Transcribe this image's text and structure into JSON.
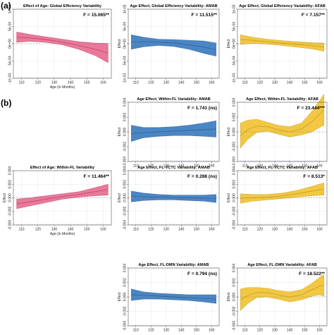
{
  "panel_labels": [
    "(a)",
    "(b)"
  ],
  "chart_data": [
    {
      "id": "a1",
      "type": "line",
      "title": "Effect of Age: Global Efficiency Variability",
      "annotation": "F = 15.065**",
      "xlabel": "Age (in Months)",
      "ylabel": "",
      "xlim": [
        105,
        165
      ],
      "ylim": [
        -0.001,
        0.001
      ],
      "xticks": [
        110,
        120,
        130,
        140,
        150,
        160
      ],
      "yticks": [
        -0.001,
        -0.0005,
        0,
        0.0005,
        0.001
      ],
      "ytick_labels": [
        "-1e-03",
        "-5e-04",
        "0e+00",
        "5e-04",
        "1e-03"
      ],
      "band_color": "#e8799a",
      "line_color": "#c23a5c",
      "x": [
        107,
        115,
        125,
        135,
        145,
        155,
        163
      ],
      "fit": [
        0.00019,
        0.00017,
        0.00012,
        5e-05,
        -5e-05,
        -0.00016,
        -0.00027
      ],
      "lower": [
        4e-05,
        7e-05,
        4e-05,
        -3e-05,
        -0.00016,
        -0.00034,
        -0.00055
      ],
      "upper": [
        0.00034,
        0.00027,
        0.0002,
        0.00013,
        6e-05,
        2e-05,
        1e-05
      ]
    },
    {
      "id": "a2",
      "type": "line",
      "title": "Age Effect, Global Efficiency Variability: AMAB",
      "annotation": "F = 11.515**",
      "xlabel": "",
      "ylabel": "Effect",
      "xlim": [
        105,
        165
      ],
      "ylim": [
        -0.001,
        0.001
      ],
      "xticks": [
        110,
        120,
        130,
        140,
        150,
        160
      ],
      "yticks": [
        -0.001,
        -0.0005,
        0,
        0.0005,
        0.001
      ],
      "ytick_labels": [
        "-1e-03",
        "-5e-04",
        "0e+00",
        "5e-04",
        "1e-03"
      ],
      "band_color": "#4a86c5",
      "line_color": "#2a5d94",
      "x": [
        107,
        115,
        125,
        135,
        145,
        155,
        163
      ],
      "fit": [
        5e-05,
        5e-05,
        4e-05,
        2e-05,
        -3e-05,
        -0.0001,
        -0.00017
      ],
      "lower": [
        -0.00016,
        -9e-05,
        -5e-05,
        -8e-05,
        -0.00016,
        -0.00028,
        -0.00036
      ],
      "upper": [
        0.00026,
        0.00019,
        0.00013,
        0.00012,
        0.0001,
        8e-05,
        2e-05
      ]
    },
    {
      "id": "a3",
      "type": "line",
      "title": "Age Effect, Global Efficiency Variability: AFAB",
      "annotation": "F = 7.157**",
      "xlabel": "",
      "ylabel": "Effect",
      "xlim": [
        105,
        165
      ],
      "ylim": [
        -0.001,
        0.001
      ],
      "xticks": [
        110,
        120,
        130,
        140,
        150,
        160
      ],
      "yticks": [
        -0.001,
        -0.0005,
        0,
        0.0005,
        0.001
      ],
      "ytick_labels": [
        "-1e-03",
        "-5e-04",
        "0e+00",
        "5e-04",
        "1e-03"
      ],
      "band_color": "#f2c744",
      "line_color": "#c49a1a",
      "x": [
        107,
        115,
        125,
        135,
        145,
        155,
        163
      ],
      "fit": [
        0.00012,
        0.0001,
        6e-05,
        2e-05,
        -2e-05,
        -6e-05,
        -0.0001
      ],
      "lower": [
        -2e-05,
        1e-05,
        -1e-05,
        -5e-05,
        -0.0001,
        -0.00015,
        -0.00022
      ],
      "upper": [
        0.00026,
        0.00019,
        0.00013,
        9e-05,
        6e-05,
        3e-05,
        2e-05
      ]
    },
    {
      "id": "b2",
      "type": "line",
      "title": "Age Effect, Within-FL Variability: AMAB",
      "annotation": "F = 1.741 (ns)",
      "xlabel": "",
      "ylabel": "Effect",
      "xlim": [
        105,
        165
      ],
      "ylim": [
        -0.004,
        0.004
      ],
      "xticks": [
        110,
        120,
        130,
        140,
        150,
        160
      ],
      "yticks": [
        -0.004,
        -0.002,
        0,
        0.002,
        0.004
      ],
      "ytick_labels": [
        "-0.004",
        "-0.002",
        "0.000",
        "0.002",
        "0.004"
      ],
      "band_color": "#4a86c5",
      "line_color": "#2a5d94",
      "x": [
        107,
        115,
        125,
        135,
        145,
        155,
        163
      ],
      "fit": [
        -0.0002,
        -0.0001,
        0,
        0.0001,
        0.0002,
        0.0003,
        0.0004
      ],
      "lower": [
        -0.0013,
        -0.0008,
        -0.0006,
        -0.0005,
        -0.0005,
        -0.0006,
        -0.0007
      ],
      "upper": [
        0.0009,
        0.0006,
        0.0006,
        0.0007,
        0.0009,
        0.0012,
        0.0015
      ]
    },
    {
      "id": "b3",
      "type": "line",
      "title": "Age Effect, Within-FL Variability: AFAB",
      "annotation": "F = 23.444***",
      "xlabel": "",
      "ylabel": "Effect",
      "xlim": [
        105,
        165
      ],
      "ylim": [
        -0.004,
        0.004
      ],
      "xticks": [
        110,
        120,
        130,
        140,
        150,
        160
      ],
      "yticks": [
        -0.004,
        -0.002,
        0,
        0.002,
        0.004
      ],
      "ytick_labels": [
        "-0.004",
        "-0.002",
        "0.000",
        "0.002",
        "0.004"
      ],
      "band_color": "#f2c744",
      "line_color": "#c49a1a",
      "x": [
        107,
        112,
        118,
        125,
        132,
        140,
        148,
        155,
        160,
        163
      ],
      "fit": [
        -0.0005,
        0.0003,
        0.0008,
        0.0007,
        0.0003,
        0,
        0.0004,
        0.0014,
        0.0024,
        0.003
      ],
      "lower": [
        -0.0022,
        -0.001,
        -0.0001,
        0.0001,
        -0.0003,
        -0.0007,
        -0.0004,
        0,
        0.0006,
        0.0009
      ],
      "upper": [
        0.0012,
        0.0016,
        0.0017,
        0.0013,
        0.0009,
        0.0007,
        0.0012,
        0.0028,
        0.0042,
        0.0051
      ]
    },
    {
      "id": "b4",
      "type": "line",
      "title": "Effect of Age: Within-FL Variability",
      "annotation": "F = 11.464**",
      "xlabel": "Age (in Months)",
      "ylabel": "Effect",
      "xlim": [
        105,
        165
      ],
      "ylim": [
        -0.004,
        0.004
      ],
      "xticks": [
        110,
        120,
        130,
        140,
        150,
        160
      ],
      "yticks": [
        -0.004,
        -0.002,
        0,
        0.002,
        0.004
      ],
      "ytick_labels": [
        "-0.004",
        "-0.002",
        "0.000",
        "0.002",
        "0.004"
      ],
      "band_color": "#e8799a",
      "line_color": "#c23a5c",
      "x": [
        107,
        115,
        125,
        135,
        145,
        155,
        163
      ],
      "fit": [
        -0.0009,
        -0.0006,
        -0.0002,
        0.0002,
        0.0005,
        0.0009,
        0.0012
      ],
      "lower": [
        -0.0016,
        -0.0012,
        -0.0007,
        -0.0002,
        0.0001,
        0.0003,
        0.0004
      ],
      "upper": [
        -0.0002,
        0,
        0.0003,
        0.0006,
        0.0009,
        0.0015,
        0.002
      ]
    },
    {
      "id": "b5",
      "type": "line",
      "title": "Age Effect, FL-VCTC Variability: AMAB",
      "annotation": "F = 0.288 (ns)",
      "xlabel": "",
      "ylabel": "Effect",
      "xlim": [
        105,
        165
      ],
      "ylim": [
        -0.004,
        0.004
      ],
      "xticks": [
        110,
        120,
        130,
        140,
        150,
        160
      ],
      "yticks": [
        -0.004,
        -0.002,
        0,
        0.002,
        0.004
      ],
      "ytick_labels": [
        "-0.004",
        "-0.002",
        "0.000",
        "0.002",
        "0.004"
      ],
      "band_color": "#4a86c5",
      "line_color": "#2a5d94",
      "x": [
        107,
        115,
        125,
        135,
        145,
        155,
        163
      ],
      "fit": [
        0.0002,
        0.00015,
        0.0001,
        5e-05,
        0,
        -5e-05,
        -0.0001
      ],
      "lower": [
        -0.0006,
        -0.0004,
        -0.0003,
        -0.0003,
        -0.0004,
        -0.0005,
        -0.0007
      ],
      "upper": [
        0.001,
        0.0007,
        0.0005,
        0.0004,
        0.0004,
        0.0004,
        0.0005
      ]
    },
    {
      "id": "b6",
      "type": "line",
      "title": "Age Effect, FL-VCTC Variability: AFAB",
      "annotation": "F = 8.513*",
      "xlabel": "",
      "ylabel": "Effect",
      "xlim": [
        105,
        165
      ],
      "ylim": [
        -0.004,
        0.004
      ],
      "xticks": [
        110,
        120,
        130,
        140,
        150,
        160
      ],
      "yticks": [
        -0.004,
        -0.002,
        0,
        0.002,
        0.004
      ],
      "ytick_labels": [
        "-0.004",
        "-0.002",
        "0.000",
        "0.002",
        "0.004"
      ],
      "band_color": "#f2c744",
      "line_color": "#c49a1a",
      "x": [
        107,
        115,
        125,
        135,
        145,
        155,
        163
      ],
      "fit": [
        -0.0001,
        0,
        0.0001,
        0.0003,
        0.0006,
        0.001,
        0.0013
      ],
      "lower": [
        -0.0008,
        -0.0005,
        -0.0003,
        -0.0001,
        0.0001,
        0.0003,
        0.0004
      ],
      "upper": [
        0.0006,
        0.0005,
        0.0005,
        0.0007,
        0.0011,
        0.0017,
        0.0022
      ]
    },
    {
      "id": "b8",
      "type": "line",
      "title": "Age Effect, FL-DMN Variability: AMAB",
      "annotation": "F = 0.794 (ns)",
      "xlabel": "",
      "ylabel": "Effect",
      "xlim": [
        105,
        165
      ],
      "ylim": [
        -0.004,
        0.004
      ],
      "xticks": [
        110,
        120,
        130,
        140,
        150,
        160
      ],
      "yticks": [
        -0.004,
        -0.002,
        0,
        0.002,
        0.004
      ],
      "ytick_labels": [
        "-0.004",
        "-0.002",
        "0.000",
        "0.002",
        "0.004"
      ],
      "band_color": "#4a86c5",
      "line_color": "#2a5d94",
      "x": [
        107,
        115,
        125,
        135,
        145,
        155,
        163
      ],
      "fit": [
        0.0003,
        0.0002,
        0.0001,
        0,
        -0.0001,
        -0.0002,
        -0.0003
      ],
      "lower": [
        -0.0005,
        -0.0003,
        -0.0003,
        -0.0004,
        -0.0005,
        -0.0007,
        -0.0009
      ],
      "upper": [
        0.0011,
        0.0007,
        0.0005,
        0.0004,
        0.0003,
        0.0003,
        0.0003
      ]
    },
    {
      "id": "b9",
      "type": "line",
      "title": "Age Effect, FL-DMN Variability: AFAB",
      "annotation": "F = 18.522**",
      "xlabel": "",
      "ylabel": "Effect",
      "xlim": [
        105,
        165
      ],
      "ylim": [
        -0.004,
        0.004
      ],
      "xticks": [
        110,
        120,
        130,
        140,
        150,
        160
      ],
      "yticks": [
        -0.004,
        -0.002,
        0,
        0.002,
        0.004
      ],
      "ytick_labels": [
        "-0.004",
        "-0.002",
        "0.000",
        "0.002",
        "0.004"
      ],
      "band_color": "#f2c744",
      "line_color": "#c49a1a",
      "x": [
        107,
        112,
        118,
        125,
        132,
        140,
        148,
        155,
        160,
        163
      ],
      "fit": [
        -0.0004,
        0.0002,
        0.0006,
        0.0006,
        0.0003,
        0,
        0.0003,
        0.001,
        0.0015,
        0.0016
      ],
      "lower": [
        -0.0019,
        -0.0009,
        -0.0001,
        0,
        -0.0003,
        -0.0007,
        -0.0004,
        0.0001,
        0.0003,
        0.0001
      ],
      "upper": [
        0.0011,
        0.0013,
        0.0013,
        0.0012,
        0.0009,
        0.0007,
        0.001,
        0.0019,
        0.0027,
        0.0031
      ]
    }
  ]
}
